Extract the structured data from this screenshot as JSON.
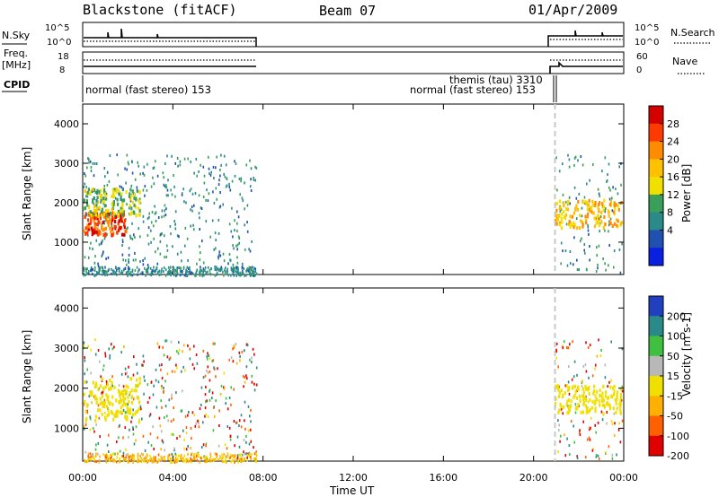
{
  "header": {
    "title": "Blackstone (fitACF)",
    "beam": "Beam 07",
    "date": "01/Apr/2009"
  },
  "panels": {
    "nsky": {
      "label": "N.Sky",
      "ticks": [
        "10^5",
        "10^0"
      ],
      "right_label": "N.Search",
      "right_ticks": [
        "10^5",
        "10^0"
      ]
    },
    "freq": {
      "label_line1": "Freq.",
      "label_line2": "[MHz]",
      "ticks": [
        "18",
        "8"
      ],
      "right_label": "Nave",
      "right_ticks": [
        "60",
        "0"
      ]
    },
    "cpid": {
      "label": "CPID",
      "segments": [
        "normal (fast stereo) 153",
        "themis (tau) 3310",
        "normal (fast stereo) 153"
      ]
    }
  },
  "axes": {
    "ylabel": "Slant Range [km]",
    "yticks": [
      "4000",
      "3000",
      "2000",
      "1000"
    ],
    "xticks": [
      "00:00",
      "04:00",
      "08:00",
      "12:00",
      "16:00",
      "20:00",
      "00:00"
    ],
    "xlabel": "Time UT"
  },
  "colorbars": {
    "power": {
      "label": "Power [dB]",
      "ticks": [
        "28",
        "24",
        "20",
        "16",
        "12",
        "8",
        "4"
      ],
      "colors": [
        "#d40000",
        "#ff3a00",
        "#ff8c00",
        "#ffc000",
        "#f0e000",
        "#3a9f5a",
        "#2a8a8a",
        "#2050b0",
        "#0a20e0"
      ]
    },
    "velocity": {
      "label": "Velocity [m s-1]",
      "ticks": [
        "200",
        "100",
        "50",
        "15",
        "-15",
        "-50",
        "-100",
        "-200"
      ],
      "colors": [
        "#2040c0",
        "#2a8a8a",
        "#40c040",
        "#b8b8b8",
        "#f0e000",
        "#ffb000",
        "#ff6000",
        "#e00000"
      ]
    }
  },
  "chart_data": {
    "type": "heatmap",
    "x_range_hours": [
      0,
      24
    ],
    "y_range_km": [
      180,
      4500
    ],
    "data_gaps_hours": [
      [
        7.8,
        20.8
      ]
    ],
    "power_regions": [
      {
        "t0": 0.0,
        "t1": 1.9,
        "r0": 1200,
        "r1": 1800,
        "power_db": 26
      },
      {
        "t0": 0.0,
        "t1": 2.5,
        "r0": 1700,
        "r1": 2400,
        "power_db": 12
      },
      {
        "t0": 20.9,
        "t1": 23.9,
        "r0": 1400,
        "r1": 2100,
        "power_db": 18
      }
    ],
    "velocity_regions": [
      {
        "t0": 0.0,
        "t1": 2.5,
        "r0": 1200,
        "r1": 2300,
        "velocity_ms": 0
      },
      {
        "t0": 20.9,
        "t1": 23.9,
        "r0": 1400,
        "r1": 2100,
        "velocity_ms": 0
      }
    ]
  }
}
